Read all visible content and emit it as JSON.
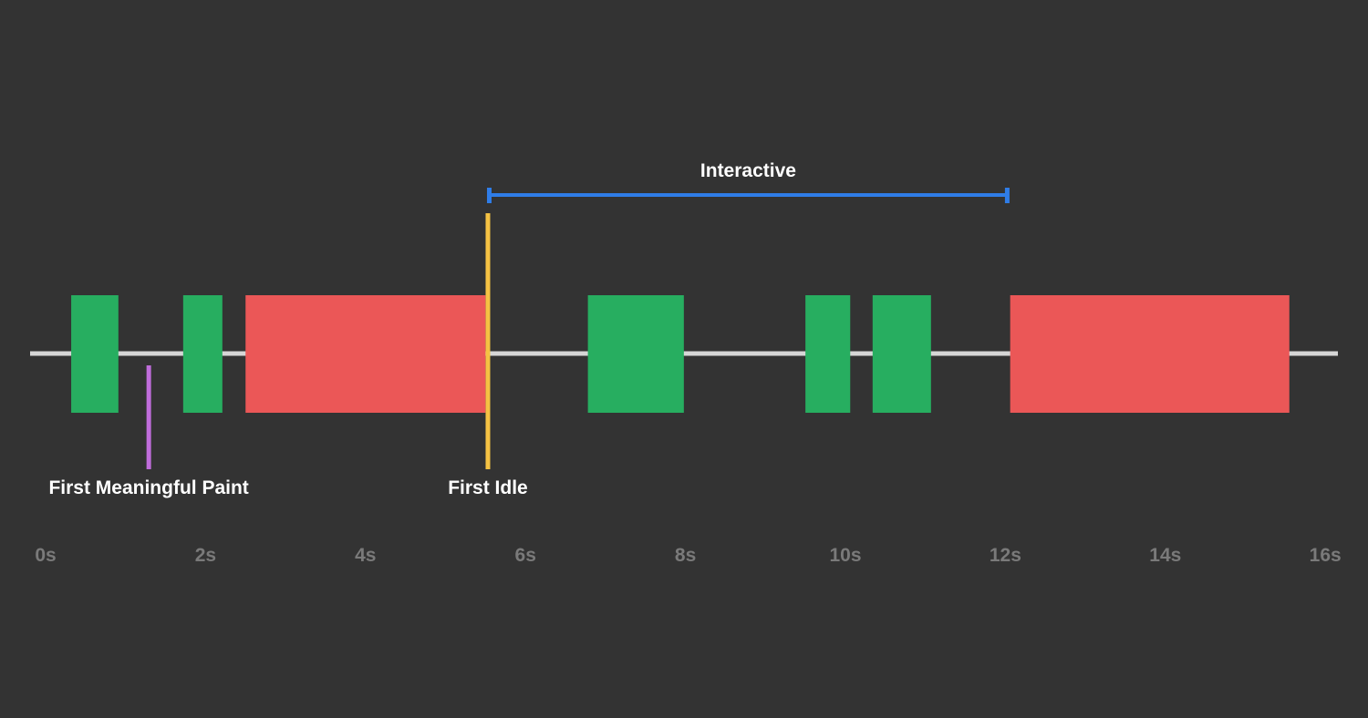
{
  "chart_data": {
    "type": "timeline",
    "x_unit": "s",
    "xlim": [
      0,
      16
    ],
    "ticks": [
      {
        "value": 0,
        "label": "0s"
      },
      {
        "value": 2,
        "label": "2s"
      },
      {
        "value": 4,
        "label": "4s"
      },
      {
        "value": 6,
        "label": "6s"
      },
      {
        "value": 8,
        "label": "8s"
      },
      {
        "value": 10,
        "label": "10s"
      },
      {
        "value": 12,
        "label": "12s"
      },
      {
        "value": 14,
        "label": "14s"
      },
      {
        "value": 16,
        "label": "16s"
      }
    ],
    "tasks": [
      {
        "start": 0.32,
        "end": 0.91,
        "kind": "short"
      },
      {
        "start": 1.72,
        "end": 2.21,
        "kind": "short"
      },
      {
        "start": 2.5,
        "end": 5.5,
        "kind": "long"
      },
      {
        "start": 6.78,
        "end": 7.98,
        "kind": "short"
      },
      {
        "start": 9.5,
        "end": 10.06,
        "kind": "short"
      },
      {
        "start": 10.34,
        "end": 11.07,
        "kind": "short"
      },
      {
        "start": 12.06,
        "end": 15.55,
        "kind": "long"
      }
    ],
    "markers": [
      {
        "label": "First Meaningful Paint",
        "time": 1.29,
        "color": "#c06ddb"
      },
      {
        "label": "First Idle",
        "time": 5.53,
        "color": "#f5c243"
      }
    ],
    "span": {
      "label": "Interactive",
      "start": 5.53,
      "end": 12.04,
      "color": "#2f7de8"
    }
  },
  "colors": {
    "background": "#333333",
    "baseline": "#d6d6d6",
    "short_task": "#27ae60",
    "long_task": "#eb5757",
    "tick_text": "#7a7a7a",
    "label_text": "#ffffff"
  }
}
